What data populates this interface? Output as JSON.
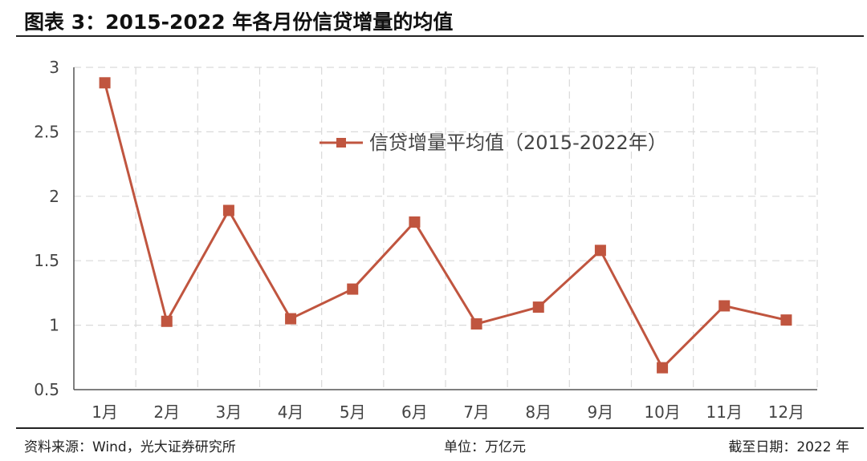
{
  "header": {
    "title": "图表 3：2015-2022 年各月份信贷增量的均值"
  },
  "footer": {
    "source": "资料来源：Wind，光大证券研究所",
    "unit": "单位：万亿元",
    "date": "截至日期：2022 年"
  },
  "chart_data": {
    "type": "line",
    "title": "",
    "xlabel": "",
    "ylabel": "",
    "categories": [
      "1月",
      "2月",
      "3月",
      "4月",
      "5月",
      "6月",
      "7月",
      "8月",
      "9月",
      "10月",
      "11月",
      "12月"
    ],
    "series": [
      {
        "name": "信贷增量平均值（2015-2022年）",
        "values": [
          2.88,
          1.03,
          1.89,
          1.05,
          1.28,
          1.8,
          1.01,
          1.14,
          1.58,
          0.67,
          1.15,
          1.04
        ],
        "color": "#c0553f"
      }
    ],
    "y_ticks": [
      "0.5",
      "1",
      "1.5",
      "2",
      "2.5",
      "3"
    ],
    "ylim": [
      0.5,
      3
    ],
    "grid": true,
    "legend_position": "top-center"
  }
}
